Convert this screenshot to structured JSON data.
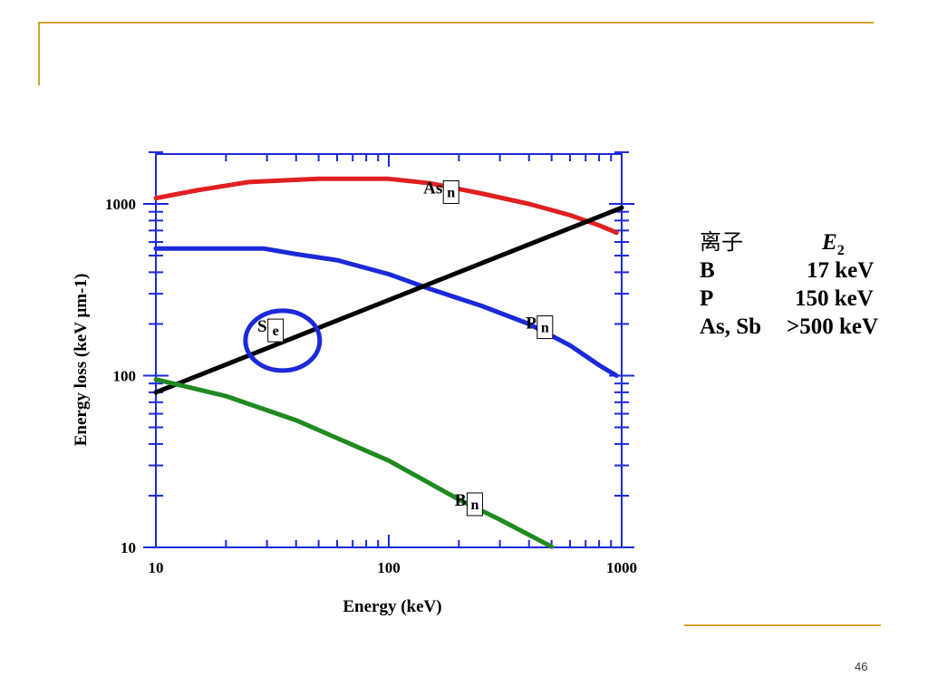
{
  "slide": {
    "page_number": "46",
    "accent_color": "#d4a32a"
  },
  "chart_data": {
    "type": "line",
    "xscale": "log",
    "yscale": "log",
    "xlim": [
      10,
      1000
    ],
    "ylim": [
      10,
      2000
    ],
    "xlabel": "Energy (keV)",
    "ylabel": "Energy loss (keV µm-1)",
    "xticks": [
      {
        "value": 10,
        "label": "10"
      },
      {
        "value": 100,
        "label": "100"
      },
      {
        "value": 1000,
        "label": "1000"
      }
    ],
    "yticks": [
      {
        "value": 10,
        "label": "10"
      },
      {
        "value": 100,
        "label": "100"
      },
      {
        "value": 1000,
        "label": "1000"
      }
    ],
    "series": [
      {
        "name": "As",
        "subscript": "n",
        "color": "#e02020",
        "label_at": [
          170,
          1150
        ],
        "points": [
          [
            10,
            1080
          ],
          [
            15,
            1200
          ],
          [
            25,
            1340
          ],
          [
            50,
            1400
          ],
          [
            100,
            1400
          ],
          [
            150,
            1320
          ],
          [
            250,
            1150
          ],
          [
            400,
            1000
          ],
          [
            600,
            860
          ],
          [
            800,
            750
          ],
          [
            950,
            680
          ]
        ]
      },
      {
        "name": "P",
        "subscript": "n",
        "color": "#1a2ad8",
        "label_at": [
          430,
          188
        ],
        "points": [
          [
            10,
            550
          ],
          [
            20,
            550
          ],
          [
            29,
            550
          ],
          [
            40,
            510
          ],
          [
            60,
            470
          ],
          [
            100,
            390
          ],
          [
            150,
            320
          ],
          [
            250,
            255
          ],
          [
            400,
            200
          ],
          [
            600,
            150
          ],
          [
            800,
            115
          ],
          [
            950,
            100
          ]
        ]
      },
      {
        "name": "S",
        "subscript": "e",
        "color": "#000000",
        "label_at": [
          30,
          180
        ],
        "points": [
          [
            10,
            80
          ],
          [
            1000,
            950
          ]
        ]
      },
      {
        "name": "B",
        "subscript": "n",
        "color": "#1f8a1f",
        "label_at": [
          215,
          17.5
        ],
        "points": [
          [
            10,
            95
          ],
          [
            20,
            76
          ],
          [
            40,
            55
          ],
          [
            100,
            32
          ],
          [
            200,
            19
          ],
          [
            300,
            14.5
          ],
          [
            500,
            10.1
          ]
        ]
      }
    ],
    "highlight_circle": {
      "series": "S",
      "x": 35,
      "y": 160,
      "color": "#1a2ad8"
    }
  },
  "side_table": {
    "header": {
      "ion": "离子",
      "energy_symbol": "E",
      "energy_sub": "2"
    },
    "rows": [
      {
        "ion": "B",
        "energy": "17 keV"
      },
      {
        "ion": "P",
        "energy": "150 keV"
      },
      {
        "ion": "As, Sb",
        "energy": ">500 keV"
      }
    ]
  }
}
